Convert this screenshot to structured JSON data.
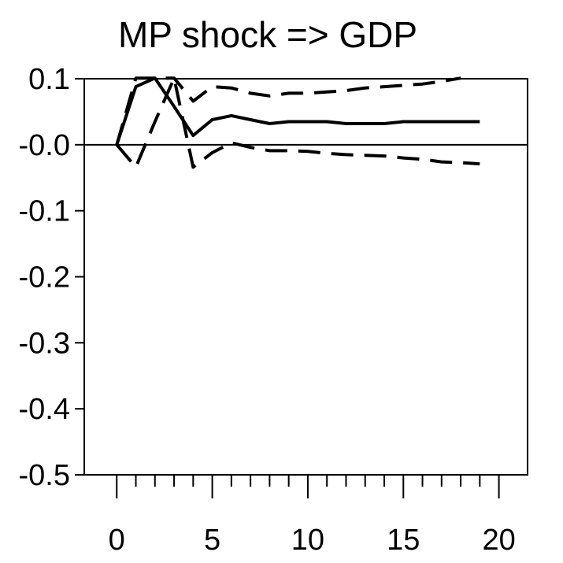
{
  "chart_data": {
    "type": "line",
    "title": "MP shock => GDP",
    "xlabel": "",
    "ylabel": "",
    "xlim": [
      -1.7,
      21.5
    ],
    "ylim": [
      -0.5,
      0.1
    ],
    "x_ticks": [
      0,
      5,
      10,
      15,
      20
    ],
    "x_tick_labels": [
      "0",
      "5",
      "10",
      "15",
      "20"
    ],
    "x_minor_ticks": [
      1,
      2,
      3,
      4,
      6,
      7,
      8,
      9,
      11,
      12,
      13,
      14,
      16,
      17,
      18,
      19
    ],
    "y_ticks": [
      0.1,
      0.0,
      -0.1,
      -0.2,
      -0.3,
      -0.4,
      -0.5
    ],
    "y_tick_labels": [
      "0.1",
      "-0.0",
      "-0.1",
      "-0.2",
      "-0.3",
      "-0.4",
      "-0.5"
    ],
    "zero_line": true,
    "grid": false,
    "series": [
      {
        "role": "response",
        "style": "solid",
        "color": "#000000",
        "x": [
          0,
          1,
          2,
          3,
          4,
          5,
          6,
          7,
          8,
          9,
          10,
          11,
          12,
          13,
          14,
          15,
          16,
          17,
          18,
          19
        ],
        "values": [
          0.0,
          0.088,
          0.101,
          0.058,
          0.014,
          0.038,
          0.044,
          0.038,
          0.032,
          0.035,
          0.035,
          0.035,
          0.032,
          0.032,
          0.032,
          0.035,
          0.035,
          0.035,
          0.035,
          0.035
        ]
      },
      {
        "role": "upper-band",
        "style": "dashed",
        "color": "#000000",
        "x": [
          0,
          1,
          2,
          3,
          4,
          5,
          6,
          7,
          8,
          9,
          10,
          11,
          12,
          13,
          14,
          15,
          16,
          17,
          18
        ],
        "values": [
          0.0,
          0.101,
          0.101,
          0.101,
          0.066,
          0.088,
          0.086,
          0.078,
          0.074,
          0.078,
          0.078,
          0.08,
          0.082,
          0.086,
          0.088,
          0.09,
          0.092,
          0.096,
          0.101
        ]
      },
      {
        "role": "lower-band",
        "style": "dashed",
        "color": "#000000",
        "x": [
          0,
          1,
          2,
          3,
          4,
          5,
          6,
          7,
          8,
          9,
          10,
          11,
          12,
          13,
          14,
          15,
          16,
          17,
          18,
          19
        ],
        "values": [
          0.0,
          -0.034,
          0.035,
          0.101,
          -0.034,
          -0.012,
          0.003,
          -0.004,
          -0.009,
          -0.009,
          -0.01,
          -0.013,
          -0.015,
          -0.016,
          -0.017,
          -0.02,
          -0.022,
          -0.026,
          -0.027,
          -0.029
        ]
      }
    ]
  }
}
